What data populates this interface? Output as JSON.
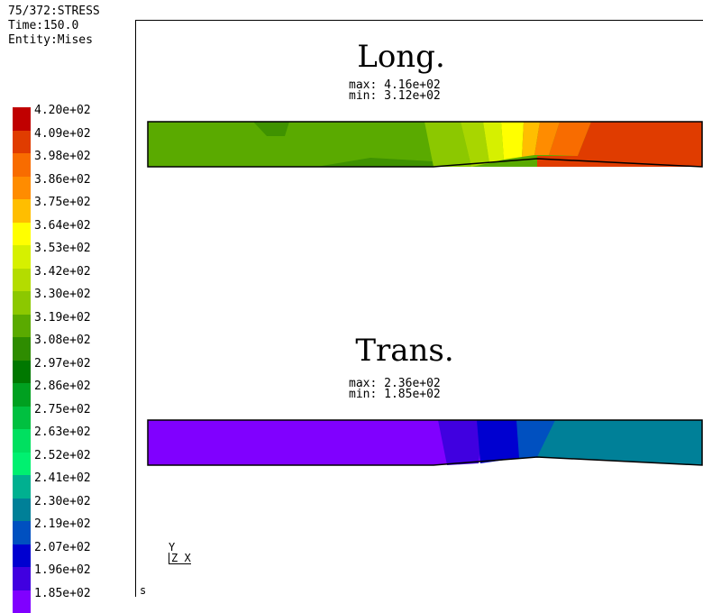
{
  "header": {
    "line1": "75/372:STRESS",
    "line2": "Time:150.0",
    "line3": "Entity:Mises"
  },
  "legend": {
    "entries": [
      {
        "label": "4.20e+02",
        "color": "#c00000"
      },
      {
        "label": "4.09e+02",
        "color": "#e03c00"
      },
      {
        "label": "3.98e+02",
        "color": "#f86c00"
      },
      {
        "label": "3.86e+02",
        "color": "#ff8c00"
      },
      {
        "label": "3.75e+02",
        "color": "#ffbe00"
      },
      {
        "label": "3.64e+02",
        "color": "#ffff00"
      },
      {
        "label": "3.53e+02",
        "color": "#d6f000"
      },
      {
        "label": "3.42e+02",
        "color": "#b4dc00"
      },
      {
        "label": "3.30e+02",
        "color": "#8cc800"
      },
      {
        "label": "3.19e+02",
        "color": "#5aaa00"
      },
      {
        "label": "3.08e+02",
        "color": "#2e8c00"
      },
      {
        "label": "2.97e+02",
        "color": "#007800"
      },
      {
        "label": "2.86e+02",
        "color": "#00a020"
      },
      {
        "label": "2.75e+02",
        "color": "#00c040"
      },
      {
        "label": "2.63e+02",
        "color": "#00e060"
      },
      {
        "label": "2.52e+02",
        "color": "#00f070"
      },
      {
        "label": "2.41e+02",
        "color": "#00b090"
      },
      {
        "label": "2.30e+02",
        "color": "#008098"
      },
      {
        "label": "2.19e+02",
        "color": "#0050c0"
      },
      {
        "label": "2.07e+02",
        "color": "#0000d0"
      },
      {
        "label": "1.96e+02",
        "color": "#4000e0"
      },
      {
        "label": "1.85e+02",
        "color": "#8000ff"
      }
    ]
  },
  "long_part": {
    "title": "Long.",
    "max": "max: 4.16e+02",
    "min": "min: 3.12e+02",
    "colors": {
      "left": "#5aaa00",
      "transition1": "#8cc800",
      "transition2": "#b4dc00",
      "transition3": "#ffff00",
      "transition4": "#ff8c00",
      "right": "#e03c00"
    }
  },
  "trans_part": {
    "title": "Trans.",
    "max": "max: 2.36e+02",
    "min": "min: 1.85e+02",
    "colors": {
      "left": "#8000ff",
      "transition1": "#4000e0",
      "transition2": "#0000d0",
      "transition3": "#0050c0",
      "right": "#008098"
    }
  },
  "triad": {
    "y": "Y",
    "zx": "Z X"
  },
  "corner_label": "s"
}
